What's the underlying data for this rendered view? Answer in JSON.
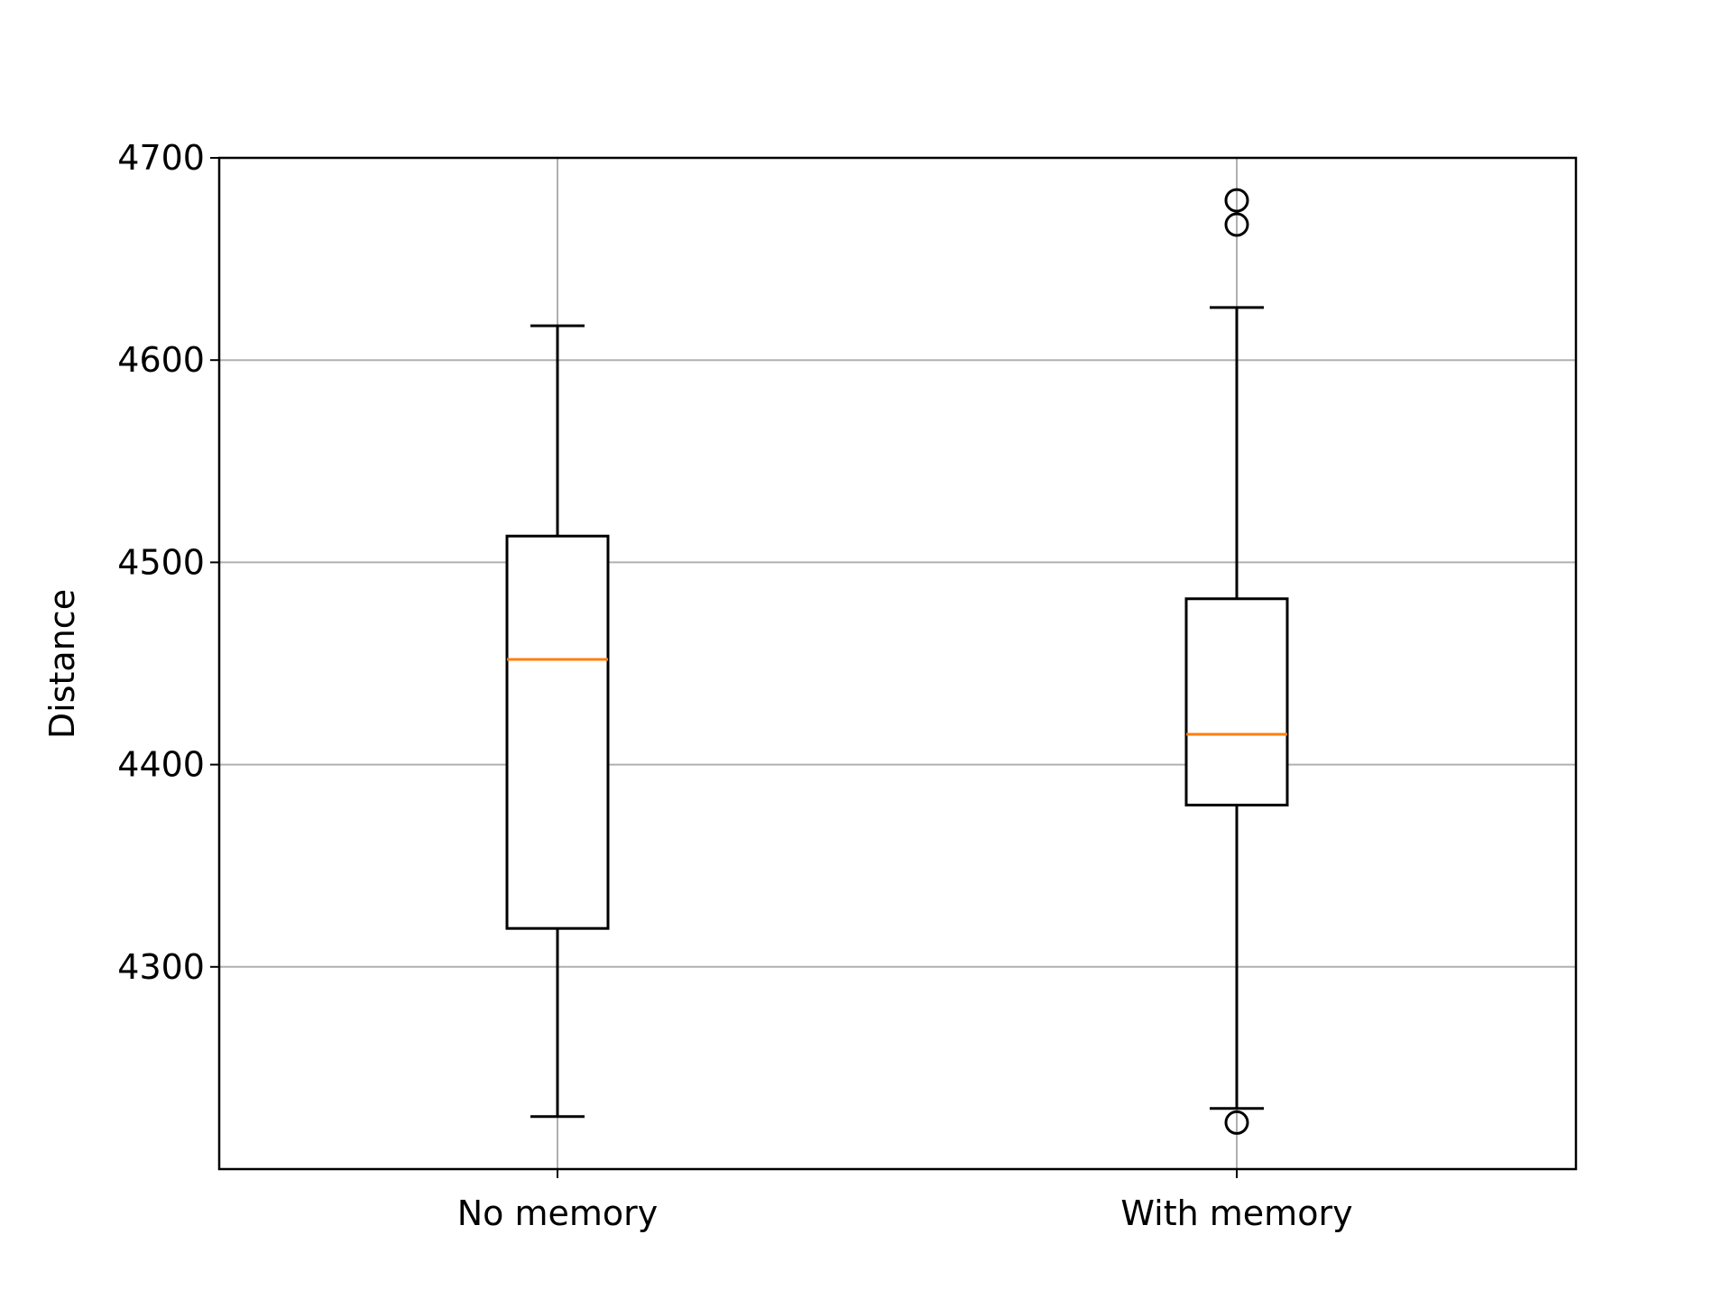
{
  "chart_data": {
    "type": "box",
    "categories": [
      "No memory",
      "With memory"
    ],
    "ylabel": "Distance",
    "xlabel": "",
    "ylim": [
      4200,
      4700
    ],
    "yticks": [
      4300,
      4400,
      4500,
      4600,
      4700
    ],
    "grid": true,
    "boxes": [
      {
        "whisker_low": 4226,
        "q1": 4319,
        "median": 4452,
        "q3": 4513,
        "whisker_high": 4617,
        "outliers": []
      },
      {
        "whisker_low": 4230,
        "q1": 4380,
        "median": 4415,
        "q3": 4482,
        "whisker_high": 4626,
        "outliers": [
          4679,
          4667,
          4223
        ]
      }
    ],
    "colors": {
      "box": "#000000",
      "median": "#ff7f0e",
      "grid": "#b0b0b0"
    }
  }
}
